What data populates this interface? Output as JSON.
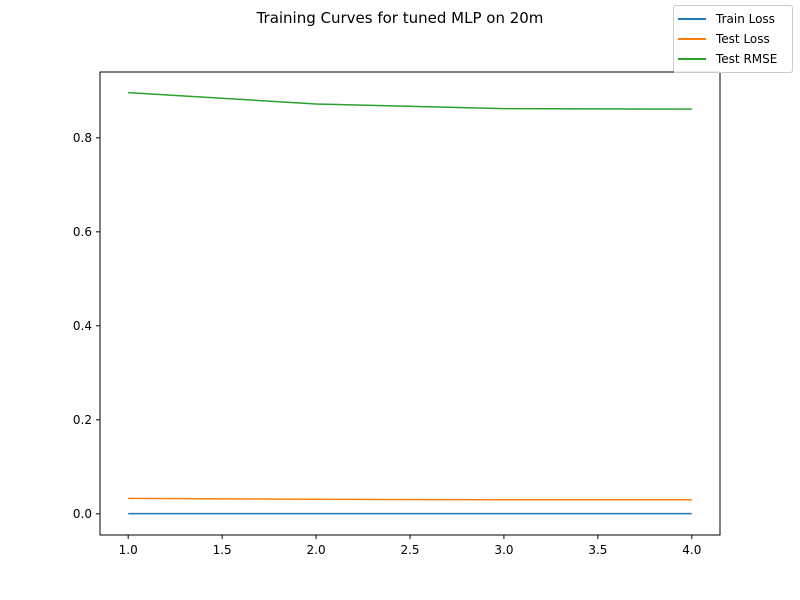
{
  "chart_data": {
    "type": "line",
    "title": "Training Curves for tuned MLP on 20m",
    "xlabel": "",
    "ylabel": "",
    "x": [
      1,
      2,
      3,
      4
    ],
    "xlim": [
      0.85,
      4.15
    ],
    "ylim": [
      -0.045,
      0.94
    ],
    "xticks": [
      1.0,
      1.5,
      2.0,
      2.5,
      3.0,
      3.5,
      4.0
    ],
    "xtick_labels": [
      "1.0",
      "1.5",
      "2.0",
      "2.5",
      "3.0",
      "3.5",
      "4.0"
    ],
    "yticks": [
      0.0,
      0.2,
      0.4,
      0.6,
      0.8
    ],
    "ytick_labels": [
      "0.0",
      "0.2",
      "0.4",
      "0.6",
      "0.8"
    ],
    "grid": false,
    "legend_position": "top-right",
    "series": [
      {
        "name": "Train Loss",
        "color": "#1f77b4",
        "values": [
          0.0005,
          0.0005,
          0.0005,
          0.0005
        ]
      },
      {
        "name": "Test Loss",
        "color": "#ff7f0e",
        "values": [
          0.033,
          0.031,
          0.03,
          0.03
        ]
      },
      {
        "name": "Test RMSE",
        "color": "#2ca02c",
        "values": [
          0.896,
          0.872,
          0.862,
          0.861
        ]
      }
    ]
  }
}
